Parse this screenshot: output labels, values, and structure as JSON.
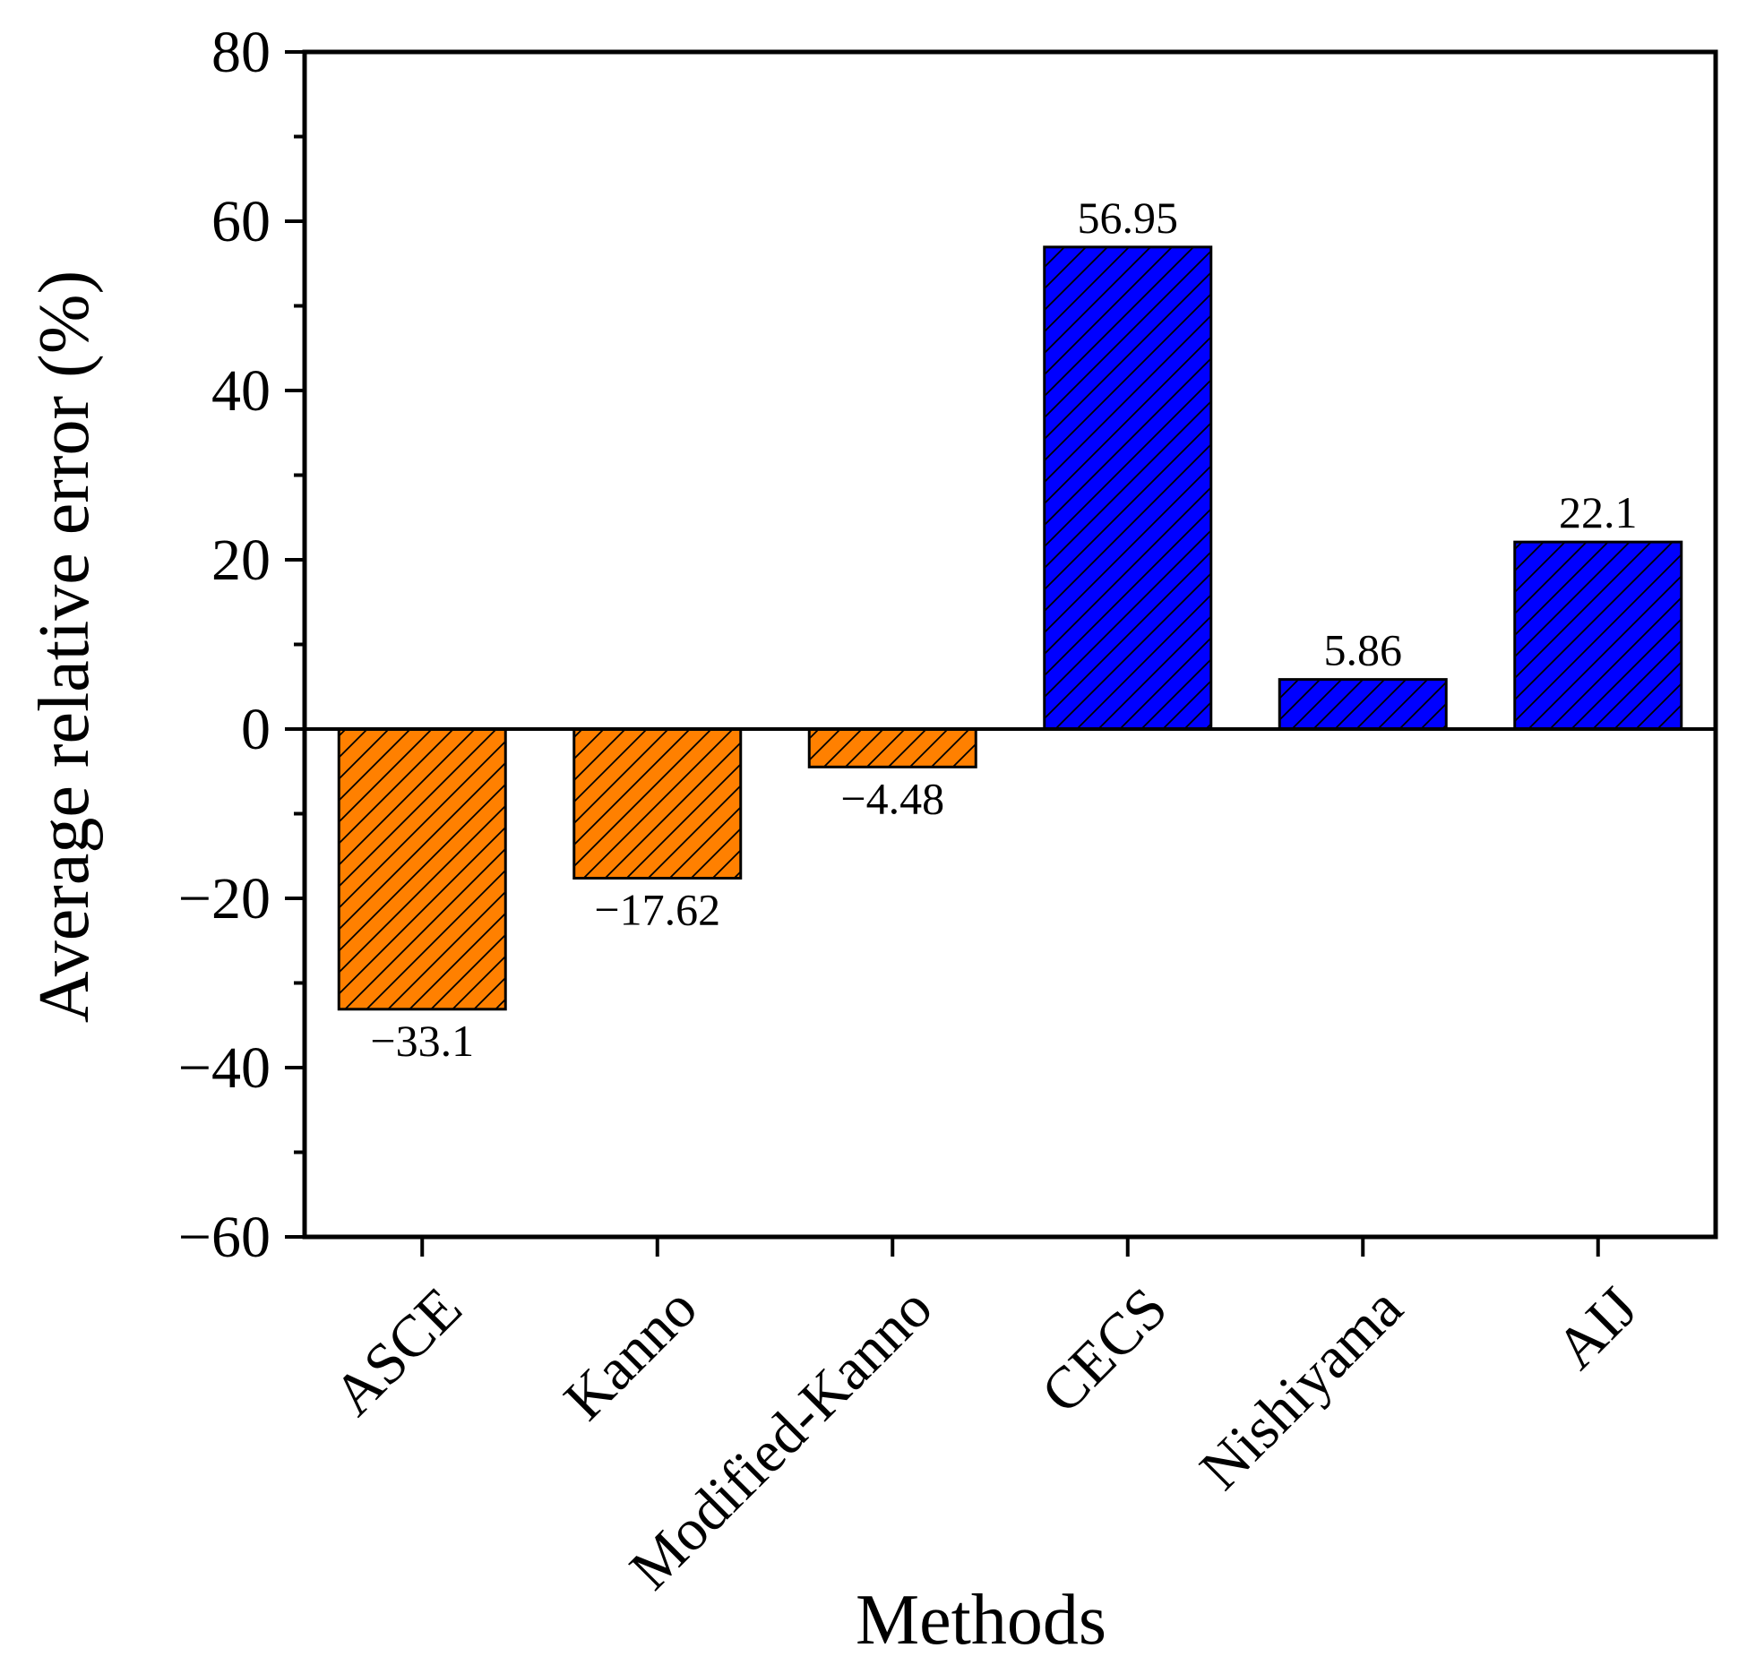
{
  "chart_data": {
    "type": "bar",
    "title": "",
    "xlabel": "Methods",
    "ylabel": "Average relative error (%)",
    "categories": [
      "ASCE",
      "Kanno",
      "Modified-Kanno",
      "CECS",
      "Nishiyama",
      "AIJ"
    ],
    "values": [
      -33.1,
      -17.62,
      -4.48,
      56.95,
      5.86,
      22.1
    ],
    "data_labels": [
      "−33.1",
      "−17.62",
      "−4.48",
      "56.95",
      "5.86",
      "22.1"
    ],
    "bar_colors": [
      "#FF8000",
      "#FF8000",
      "#FF8000",
      "#0000FF",
      "#0000FF",
      "#0000FF"
    ],
    "hatch": "diagonal",
    "ylim": [
      -60,
      80
    ],
    "yticks": [
      -60,
      -40,
      -20,
      0,
      20,
      40,
      60,
      80
    ],
    "ytick_labels": [
      "−60",
      "−40",
      "−20",
      "0",
      "20",
      "40",
      "60",
      "80"
    ],
    "grid": false,
    "zero_line": true
  }
}
